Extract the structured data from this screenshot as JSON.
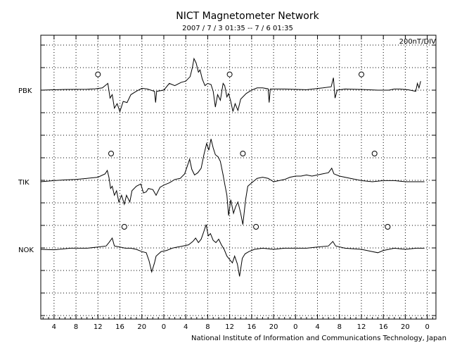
{
  "chart_data": {
    "type": "line",
    "title": "NICT Magnetometer Network",
    "subtitle": "2007 / 7 / 3   01:35 --  7 / 6  01:35",
    "scale_label": "200nT/DIV",
    "footer": "National Institute of Information and Communications Technology, Japan",
    "x_tick_labels": [
      "4",
      "8",
      "12",
      "16",
      "20",
      "0",
      "4",
      "8",
      "12",
      "16",
      "20",
      "0",
      "4",
      "8",
      "12",
      "16",
      "20",
      "0"
    ],
    "x_unit": "hours (UT)",
    "xlim": [
      1.583,
      73.583
    ],
    "grid": true,
    "series": [
      {
        "name": "PBK",
        "baseline_index": 0,
        "points": [
          [
            1.6,
            0.0
          ],
          [
            6,
            0.03
          ],
          [
            10,
            0.04
          ],
          [
            11.5,
            0.06
          ],
          [
            12.8,
            0.1
          ],
          [
            13.8,
            0.3
          ],
          [
            14.2,
            -0.35
          ],
          [
            14.6,
            -0.2
          ],
          [
            15.0,
            -0.8
          ],
          [
            15.5,
            -0.6
          ],
          [
            16.0,
            -0.95
          ],
          [
            16.6,
            -0.5
          ],
          [
            17.3,
            -0.55
          ],
          [
            18,
            -0.2
          ],
          [
            19,
            -0.05
          ],
          [
            20,
            0.08
          ],
          [
            21,
            0.05
          ],
          [
            22.3,
            -0.05
          ],
          [
            22.5,
            -0.55
          ],
          [
            22.7,
            -0.05
          ],
          [
            24,
            0.0
          ],
          [
            25,
            0.3
          ],
          [
            26,
            0.2
          ],
          [
            27.2,
            0.35
          ],
          [
            28,
            0.4
          ],
          [
            28.8,
            0.6
          ],
          [
            29.2,
            1.0
          ],
          [
            29.5,
            1.4
          ],
          [
            29.9,
            1.2
          ],
          [
            30.3,
            0.8
          ],
          [
            30.6,
            0.9
          ],
          [
            31,
            0.5
          ],
          [
            31.5,
            0.2
          ],
          [
            32,
            0.3
          ],
          [
            32.6,
            0.25
          ],
          [
            33,
            -0.05
          ],
          [
            33.4,
            -0.75
          ],
          [
            33.8,
            -0.2
          ],
          [
            34.3,
            -0.45
          ],
          [
            34.8,
            0.3
          ],
          [
            35.1,
            0.2
          ],
          [
            35.5,
            -0.3
          ],
          [
            35.8,
            -0.15
          ],
          [
            36.2,
            -0.5
          ],
          [
            36.6,
            -0.95
          ],
          [
            37.0,
            -0.6
          ],
          [
            37.5,
            -0.9
          ],
          [
            38,
            -0.4
          ],
          [
            39,
            -0.15
          ],
          [
            40,
            0.0
          ],
          [
            41,
            0.1
          ],
          [
            42,
            0.1
          ],
          [
            43.0,
            0.06
          ],
          [
            43.2,
            -0.55
          ],
          [
            43.4,
            0.05
          ],
          [
            46,
            0.05
          ],
          [
            50,
            0.02
          ],
          [
            53,
            0.1
          ],
          [
            54.5,
            0.15
          ],
          [
            54.9,
            0.55
          ],
          [
            55.2,
            -0.35
          ],
          [
            55.6,
            0.0
          ],
          [
            57,
            0.05
          ],
          [
            60,
            0.03
          ],
          [
            63,
            0.0
          ],
          [
            65,
            0.0
          ],
          [
            66,
            0.05
          ],
          [
            67,
            0.05
          ],
          [
            68.5,
            0.02
          ],
          [
            69.9,
            -0.05
          ],
          [
            70.2,
            0.3
          ],
          [
            70.5,
            0.1
          ],
          [
            70.8,
            0.4
          ]
        ]
      },
      {
        "name": "TIK",
        "baseline_index": 1,
        "points": [
          [
            1.6,
            0.0
          ],
          [
            4,
            0.05
          ],
          [
            6,
            0.08
          ],
          [
            8,
            0.1
          ],
          [
            10,
            0.15
          ],
          [
            12,
            0.2
          ],
          [
            13.3,
            0.35
          ],
          [
            13.7,
            0.5
          ],
          [
            14.0,
            0.2
          ],
          [
            14.3,
            -0.3
          ],
          [
            14.6,
            -0.2
          ],
          [
            15.0,
            -0.6
          ],
          [
            15.4,
            -0.4
          ],
          [
            15.8,
            -0.9
          ],
          [
            16.3,
            -0.6
          ],
          [
            16.8,
            -1.0
          ],
          [
            17.2,
            -0.6
          ],
          [
            17.8,
            -0.9
          ],
          [
            18.2,
            -0.4
          ],
          [
            19,
            -0.2
          ],
          [
            19.8,
            -0.1
          ],
          [
            20.3,
            -0.5
          ],
          [
            20.8,
            -0.45
          ],
          [
            21.2,
            -0.3
          ],
          [
            22,
            -0.35
          ],
          [
            22.6,
            -0.6
          ],
          [
            23.3,
            -0.25
          ],
          [
            24,
            -0.15
          ],
          [
            25,
            -0.05
          ],
          [
            26,
            0.1
          ],
          [
            27,
            0.15
          ],
          [
            27.8,
            0.35
          ],
          [
            28.3,
            0.7
          ],
          [
            28.7,
            1.0
          ],
          [
            29.1,
            0.55
          ],
          [
            29.6,
            0.3
          ],
          [
            30.2,
            0.4
          ],
          [
            30.8,
            0.6
          ],
          [
            31.3,
            1.2
          ],
          [
            31.8,
            1.7
          ],
          [
            32.2,
            1.4
          ],
          [
            32.6,
            1.9
          ],
          [
            33.0,
            1.5
          ],
          [
            33.4,
            1.2
          ],
          [
            33.9,
            1.1
          ],
          [
            34.3,
            0.9
          ],
          [
            34.8,
            0.3
          ],
          [
            35.1,
            -0.1
          ],
          [
            35.5,
            -0.6
          ],
          [
            35.8,
            -1.5
          ],
          [
            36.2,
            -0.8
          ],
          [
            36.7,
            -1.4
          ],
          [
            37.1,
            -1.1
          ],
          [
            37.5,
            -0.9
          ],
          [
            38.0,
            -1.4
          ],
          [
            38.4,
            -1.9
          ],
          [
            38.9,
            -0.8
          ],
          [
            39.3,
            -0.2
          ],
          [
            40,
            -0.05
          ],
          [
            41,
            0.15
          ],
          [
            42,
            0.2
          ],
          [
            43,
            0.15
          ],
          [
            44,
            0.0
          ],
          [
            45,
            0.05
          ],
          [
            46,
            0.1
          ],
          [
            47,
            0.2
          ],
          [
            48,
            0.25
          ],
          [
            49,
            0.25
          ],
          [
            50,
            0.3
          ],
          [
            51,
            0.25
          ],
          [
            52,
            0.3
          ],
          [
            53,
            0.35
          ],
          [
            54,
            0.4
          ],
          [
            54.6,
            0.6
          ],
          [
            55,
            0.35
          ],
          [
            56,
            0.25
          ],
          [
            57,
            0.2
          ],
          [
            58,
            0.15
          ],
          [
            60,
            0.05
          ],
          [
            62,
            0.0
          ],
          [
            64,
            0.05
          ],
          [
            66,
            0.05
          ],
          [
            68,
            0.0
          ],
          [
            70,
            0.0
          ],
          [
            71.5,
            0.0
          ]
        ]
      },
      {
        "name": "NOK",
        "baseline_index": 2,
        "points": [
          [
            1.6,
            0.0
          ],
          [
            4,
            -0.02
          ],
          [
            7,
            0.05
          ],
          [
            10,
            0.05
          ],
          [
            12,
            0.1
          ],
          [
            13.5,
            0.15
          ],
          [
            14.0,
            0.3
          ],
          [
            14.6,
            0.5
          ],
          [
            15.0,
            0.15
          ],
          [
            16,
            0.1
          ],
          [
            17,
            0.05
          ],
          [
            18,
            0.05
          ],
          [
            19,
            0.0
          ],
          [
            20,
            -0.1
          ],
          [
            20.8,
            -0.15
          ],
          [
            21.3,
            -0.5
          ],
          [
            21.8,
            -1.0
          ],
          [
            22.3,
            -0.6
          ],
          [
            22.6,
            -0.3
          ],
          [
            23.5,
            -0.1
          ],
          [
            24.5,
            -0.05
          ],
          [
            25.5,
            0.05
          ],
          [
            26.5,
            0.1
          ],
          [
            27.5,
            0.15
          ],
          [
            28.5,
            0.2
          ],
          [
            29.3,
            0.35
          ],
          [
            29.8,
            0.5
          ],
          [
            30.3,
            0.3
          ],
          [
            30.8,
            0.45
          ],
          [
            31.3,
            0.8
          ],
          [
            31.7,
            1.1
          ],
          [
            32.1,
            0.6
          ],
          [
            32.5,
            0.7
          ],
          [
            33.0,
            0.4
          ],
          [
            33.5,
            0.3
          ],
          [
            34.0,
            0.45
          ],
          [
            34.5,
            0.2
          ],
          [
            35.0,
            0.0
          ],
          [
            35.5,
            -0.3
          ],
          [
            36.0,
            -0.45
          ],
          [
            36.5,
            -0.6
          ],
          [
            36.9,
            -0.3
          ],
          [
            37.4,
            -0.65
          ],
          [
            37.8,
            -1.2
          ],
          [
            38.3,
            -0.4
          ],
          [
            38.8,
            -0.2
          ],
          [
            39.5,
            -0.1
          ],
          [
            40.5,
            0.0
          ],
          [
            42,
            0.05
          ],
          [
            44,
            0.0
          ],
          [
            46,
            0.05
          ],
          [
            48,
            0.05
          ],
          [
            50,
            0.05
          ],
          [
            52,
            0.1
          ],
          [
            54,
            0.15
          ],
          [
            54.8,
            0.35
          ],
          [
            55.3,
            0.15
          ],
          [
            57,
            0.05
          ],
          [
            60,
            0.0
          ],
          [
            62,
            -0.1
          ],
          [
            63,
            -0.15
          ],
          [
            64,
            -0.05
          ],
          [
            66,
            0.05
          ],
          [
            68,
            0.0
          ],
          [
            70,
            0.05
          ],
          [
            71.5,
            0.05
          ]
        ]
      }
    ],
    "markers": [
      {
        "series": "PBK",
        "x": 12.0,
        "offset": 0.7
      },
      {
        "series": "PBK",
        "x": 36.0,
        "offset": 0.7
      },
      {
        "series": "PBK",
        "x": 60.0,
        "offset": 0.7
      },
      {
        "series": "TIK",
        "x": 14.4,
        "offset": 1.25
      },
      {
        "series": "TIK",
        "x": 38.4,
        "offset": 1.25
      },
      {
        "series": "TIK",
        "x": 62.4,
        "offset": 1.25
      },
      {
        "series": "NOK",
        "x": 16.8,
        "offset": 1.0
      },
      {
        "series": "NOK",
        "x": 40.8,
        "offset": 1.0
      },
      {
        "series": "NOK",
        "x": 64.8,
        "offset": 1.0
      }
    ]
  }
}
